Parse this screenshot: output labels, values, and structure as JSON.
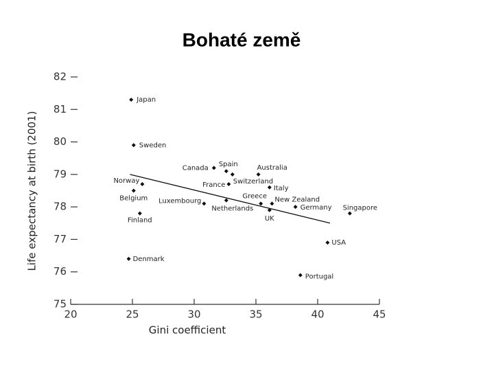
{
  "chart_data": {
    "type": "scatter",
    "title": "Bohaté země",
    "x_label": "Gini coefficient",
    "y_label": "Life expectancy at birth (2001)",
    "labels": [
      "Japan",
      "Sweden",
      "Norway",
      "Belgium",
      "Finland",
      "Denmark",
      "Canada",
      "Spain",
      "Switzerland",
      "Australia",
      "France",
      "Italy",
      "Luxembourg",
      "Netherlands",
      "Greece",
      "New Zealand",
      "UK",
      "Germany",
      "Singapore",
      "USA",
      "Portugal"
    ],
    "x": [
      24.9,
      25.1,
      25.8,
      25.1,
      25.6,
      24.7,
      31.6,
      32.6,
      33.1,
      35.2,
      32.8,
      36.1,
      30.8,
      32.6,
      35.4,
      36.3,
      36.1,
      38.2,
      42.6,
      40.8,
      38.6
    ],
    "values": [
      81.3,
      79.9,
      78.7,
      78.5,
      77.8,
      76.4,
      79.2,
      79.1,
      79.0,
      79.0,
      78.7,
      78.6,
      78.1,
      78.2,
      78.1,
      78.1,
      77.9,
      78.0,
      77.8,
      76.9,
      75.9
    ],
    "color": "#111111",
    "trendline": {
      "x": [
        24.8,
        41
      ],
      "y": [
        79.0,
        77.5
      ]
    },
    "xlim": [
      20,
      45
    ],
    "xticks": [
      20,
      25,
      30,
      35,
      40,
      45
    ],
    "ylim": [
      75,
      82
    ],
    "yticks": [
      75,
      76,
      77,
      78,
      79,
      80,
      81,
      82
    ]
  }
}
